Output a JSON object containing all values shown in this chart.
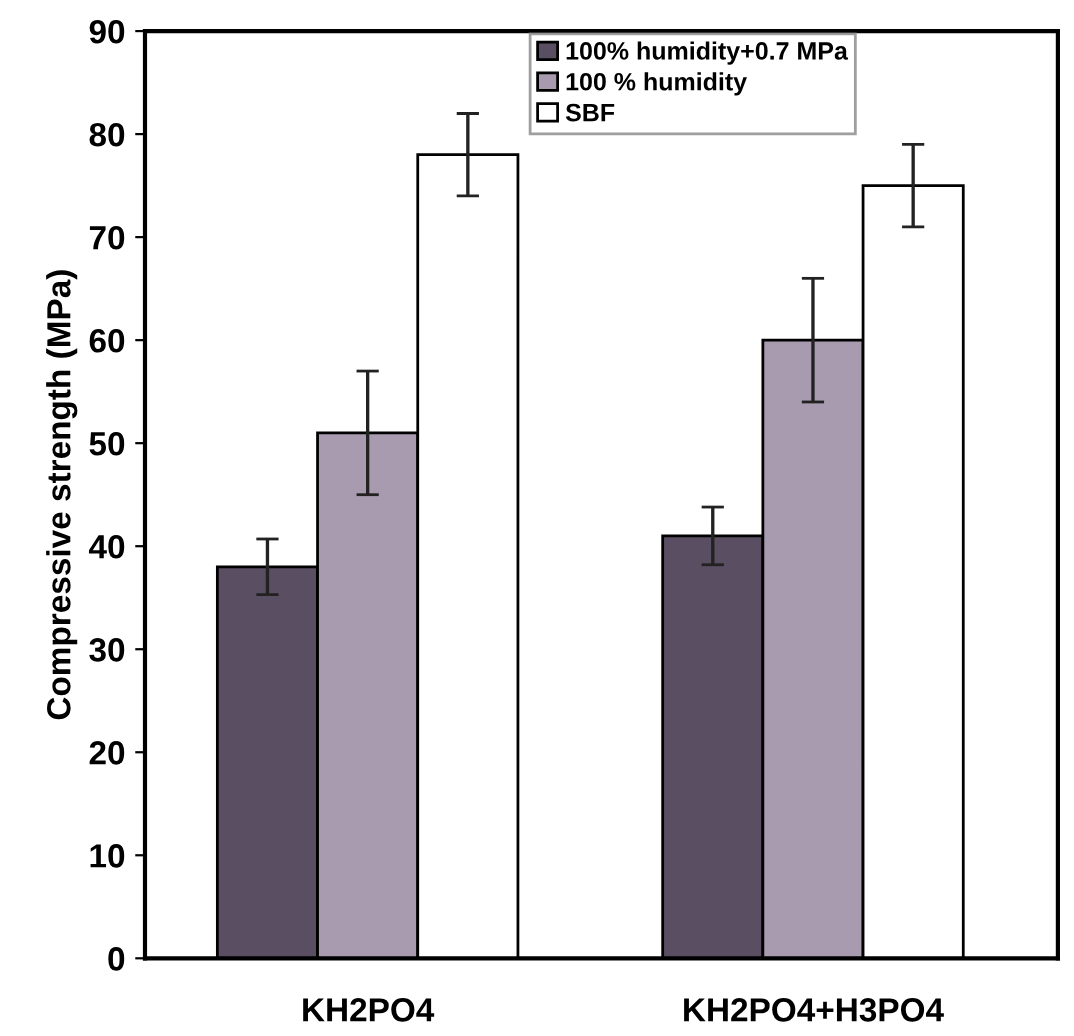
{
  "chart_data": {
    "type": "bar",
    "ylabel": "Compressive strength (MPa)",
    "categories": [
      "KH2PO4",
      "KH2PO4+H3PO4"
    ],
    "series": [
      {
        "name": "100% humidity+0.7 MPa",
        "color": "#5a4e62",
        "values": [
          38,
          41
        ],
        "errors": [
          2.7,
          2.8
        ]
      },
      {
        "name": "100 % humidity",
        "color": "#a89bb0",
        "values": [
          51,
          60
        ],
        "errors": [
          6,
          6
        ]
      },
      {
        "name": "SBF",
        "color": "#ffffff",
        "values": [
          78,
          75
        ],
        "errors": [
          4,
          4
        ]
      }
    ],
    "ylim": [
      0,
      90
    ],
    "yticks": [
      0,
      10,
      20,
      30,
      40,
      50,
      60,
      70,
      80,
      90
    ],
    "grid": false,
    "legend": "top"
  }
}
